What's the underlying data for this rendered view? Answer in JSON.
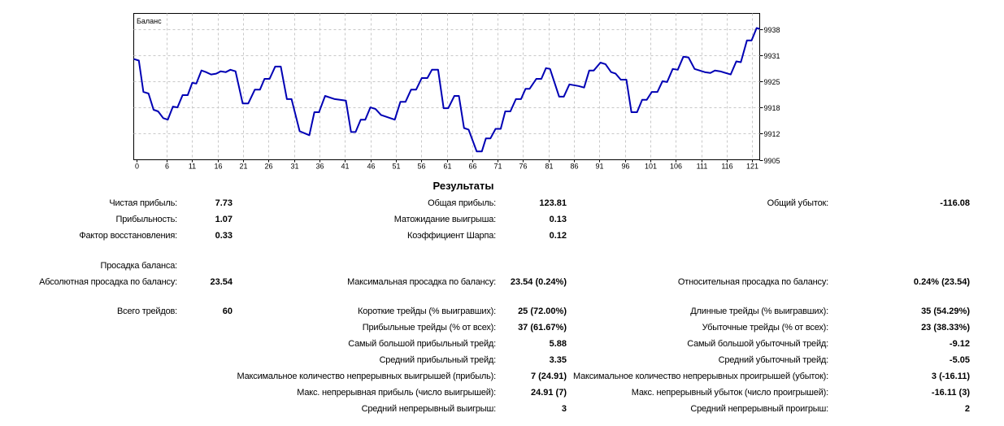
{
  "title": "Результаты",
  "chart_data": {
    "type": "line",
    "title": "Баланс",
    "xlabel": "",
    "ylabel": "",
    "xlim": [
      -0.5,
      122.5
    ],
    "ylim": [
      9905,
      9941.9
    ],
    "grid": true,
    "x_ticks": [
      0,
      6,
      11,
      16,
      21,
      26,
      31,
      36,
      41,
      46,
      51,
      56,
      61,
      66,
      71,
      76,
      81,
      86,
      91,
      96,
      101,
      106,
      111,
      116,
      121
    ],
    "y_ticks": [
      {
        "value": 9905,
        "label": "9905"
      },
      {
        "value": 9911.6,
        "label": "9912"
      },
      {
        "value": 9918.2,
        "label": "9918"
      },
      {
        "value": 9924.8,
        "label": "9925"
      },
      {
        "value": 9931.4,
        "label": "9931"
      },
      {
        "value": 9938,
        "label": "9938"
      }
    ],
    "color": "#0000b4",
    "series": [
      {
        "name": "Баланс",
        "points": [
          [
            -0.5,
            9930.4
          ],
          [
            0.5,
            9930.0
          ],
          [
            1.4,
            9922.1
          ],
          [
            2.4,
            9921.7
          ],
          [
            3.4,
            9917.6
          ],
          [
            4.3,
            9917.2
          ],
          [
            5.3,
            9915.5
          ],
          [
            6.2,
            9915.1
          ],
          [
            7.2,
            9918.4
          ],
          [
            8.1,
            9918.2
          ],
          [
            9.1,
            9921.3
          ],
          [
            10.1,
            9921.3
          ],
          [
            11.0,
            9924.4
          ],
          [
            11.8,
            9924.2
          ],
          [
            12.8,
            9927.5
          ],
          [
            13.7,
            9927.1
          ],
          [
            14.7,
            9926.5
          ],
          [
            15.7,
            9926.7
          ],
          [
            16.6,
            9927.3
          ],
          [
            17.6,
            9927.1
          ],
          [
            18.5,
            9927.7
          ],
          [
            19.5,
            9927.3
          ],
          [
            20.9,
            9919.2
          ],
          [
            22.0,
            9919.2
          ],
          [
            23.3,
            9922.7
          ],
          [
            24.3,
            9922.7
          ],
          [
            25.2,
            9925.4
          ],
          [
            26.2,
            9925.4
          ],
          [
            27.3,
            9928.5
          ],
          [
            28.4,
            9928.5
          ],
          [
            29.6,
            9920.3
          ],
          [
            30.5,
            9920.3
          ],
          [
            32.1,
            9912.2
          ],
          [
            34.0,
            9911.2
          ],
          [
            35.0,
            9917.0
          ],
          [
            35.9,
            9917.0
          ],
          [
            37.1,
            9921.1
          ],
          [
            39.0,
            9920.3
          ],
          [
            41.2,
            9919.9
          ],
          [
            42.2,
            9912.0
          ],
          [
            43.1,
            9912.0
          ],
          [
            44.1,
            9915.1
          ],
          [
            45.0,
            9915.1
          ],
          [
            46.0,
            9918.2
          ],
          [
            47.0,
            9917.8
          ],
          [
            48.1,
            9916.3
          ],
          [
            50.8,
            9915.1
          ],
          [
            51.9,
            9919.6
          ],
          [
            52.9,
            9919.6
          ],
          [
            54.0,
            9922.7
          ],
          [
            55.0,
            9922.7
          ],
          [
            56.1,
            9925.6
          ],
          [
            57.2,
            9925.6
          ],
          [
            58.1,
            9927.7
          ],
          [
            59.3,
            9927.7
          ],
          [
            60.4,
            9918.0
          ],
          [
            61.3,
            9918.0
          ],
          [
            62.5,
            9921.1
          ],
          [
            63.4,
            9921.1
          ],
          [
            64.4,
            9913.0
          ],
          [
            65.3,
            9912.6
          ],
          [
            66.9,
            9907.1
          ],
          [
            67.9,
            9907.1
          ],
          [
            68.7,
            9910.4
          ],
          [
            69.6,
            9910.4
          ],
          [
            70.6,
            9912.8
          ],
          [
            71.6,
            9912.8
          ],
          [
            72.5,
            9917.2
          ],
          [
            73.5,
            9917.2
          ],
          [
            74.6,
            9920.3
          ],
          [
            75.6,
            9920.3
          ],
          [
            76.5,
            9922.9
          ],
          [
            77.3,
            9922.9
          ],
          [
            78.6,
            9925.4
          ],
          [
            79.6,
            9925.4
          ],
          [
            80.5,
            9928.1
          ],
          [
            81.3,
            9927.9
          ],
          [
            83.1,
            9920.9
          ],
          [
            84.0,
            9920.9
          ],
          [
            85.1,
            9924.0
          ],
          [
            86.9,
            9923.6
          ],
          [
            88.0,
            9923.2
          ],
          [
            89.0,
            9927.5
          ],
          [
            89.9,
            9927.5
          ],
          [
            91.2,
            9929.5
          ],
          [
            92.2,
            9929.1
          ],
          [
            93.3,
            9927.1
          ],
          [
            94.2,
            9926.7
          ],
          [
            95.2,
            9925.2
          ],
          [
            96.3,
            9925.2
          ],
          [
            97.3,
            9917.0
          ],
          [
            98.4,
            9917.0
          ],
          [
            99.4,
            9920.1
          ],
          [
            100.3,
            9920.1
          ],
          [
            101.3,
            9922.1
          ],
          [
            102.4,
            9922.1
          ],
          [
            103.4,
            9924.8
          ],
          [
            104.3,
            9924.6
          ],
          [
            105.4,
            9927.9
          ],
          [
            106.4,
            9927.7
          ],
          [
            107.5,
            9931.0
          ],
          [
            108.5,
            9930.8
          ],
          [
            109.7,
            9927.9
          ],
          [
            111.7,
            9927.1
          ],
          [
            112.8,
            9926.9
          ],
          [
            113.7,
            9927.5
          ],
          [
            114.7,
            9927.3
          ],
          [
            116.8,
            9926.5
          ],
          [
            117.9,
            9929.8
          ],
          [
            118.8,
            9929.6
          ],
          [
            120.0,
            9935.1
          ],
          [
            120.9,
            9935.1
          ],
          [
            121.9,
            9938.2
          ],
          [
            122.5,
            9938.0
          ]
        ]
      }
    ]
  },
  "stats": {
    "col1": [
      {
        "label": "Чистая прибыль:",
        "value": "7.73"
      },
      {
        "label": "Прибыльность:",
        "value": "1.07"
      },
      {
        "label": "Фактор восстановления:",
        "value": "0.33"
      },
      {
        "label": "Просадка баланса:",
        "value": ""
      },
      {
        "label": "Абсолютная просадка по балансу:",
        "value": "23.54"
      },
      {
        "label": "Всего трейдов:",
        "value": "60"
      }
    ],
    "col2": [
      {
        "label": "Общая прибыль:",
        "value": "123.81"
      },
      {
        "label": "Матожидание выигрыша:",
        "value": "0.13"
      },
      {
        "label": "Коэффициент Шарпа:",
        "value": "0.12"
      },
      {
        "label": "Максимальная просадка по балансу:",
        "value": "23.54 (0.24%)"
      },
      {
        "label": "Короткие трейды (% выигравших):",
        "value": "25 (72.00%)"
      },
      {
        "label": "Прибыльные трейды (% от всех):",
        "value": "37 (61.67%)"
      },
      {
        "label": "Самый большой прибыльный трейд:",
        "value": "5.88"
      },
      {
        "label": "Средний прибыльный трейд:",
        "value": "3.35"
      },
      {
        "label": "Максимальное количество непрерывных выигрышей (прибыль):",
        "value": "7 (24.91)"
      },
      {
        "label": "Макс. непрерывная прибыль (число выигрышей):",
        "value": "24.91 (7)"
      },
      {
        "label": "Средний непрерывный выигрыш:",
        "value": "3"
      }
    ],
    "col3": [
      {
        "label": "Общий убыток:",
        "value": "-116.08"
      },
      {
        "label": "Относительная просадка по балансу:",
        "value": "0.24% (23.54)"
      },
      {
        "label": "Длинные трейды (% выигравших):",
        "value": "35 (54.29%)"
      },
      {
        "label": "Убыточные трейды (% от всех):",
        "value": "23 (38.33%)"
      },
      {
        "label": "Самый большой убыточный трейд:",
        "value": "-9.12"
      },
      {
        "label": "Средний убыточный трейд:",
        "value": "-5.05"
      },
      {
        "label": "Максимальное количество непрерывных проигрышей (убыток):",
        "value": "3 (-16.11)"
      },
      {
        "label": "Макс. непрерывный убыток (число проигрышей):",
        "value": "-16.11 (3)"
      },
      {
        "label": "Средний непрерывный проигрыш:",
        "value": "2"
      }
    ]
  }
}
